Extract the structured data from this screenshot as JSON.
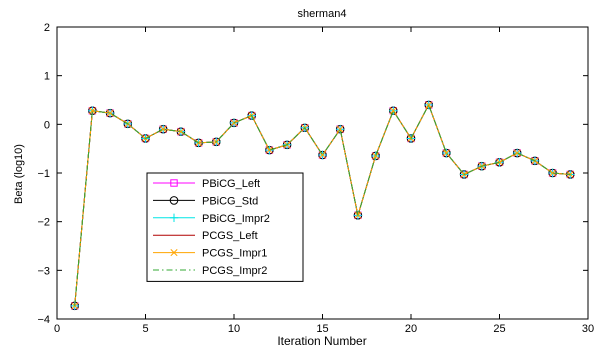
{
  "chart_data": {
    "type": "line",
    "title": "sherman4",
    "xlabel": "Iteration Number",
    "ylabel": "Beta (log10)",
    "xlim": [
      0,
      30
    ],
    "ylim": [
      -4,
      2
    ],
    "x_ticks": [
      0,
      5,
      10,
      15,
      20,
      25,
      30
    ],
    "y_ticks": [
      -4,
      -3,
      -2,
      -1,
      0,
      1,
      2
    ],
    "grid": false,
    "legend_position": "middle-left",
    "x": [
      1,
      2,
      3,
      4,
      5,
      6,
      7,
      8,
      9,
      10,
      11,
      12,
      13,
      14,
      15,
      16,
      17,
      18,
      19,
      20,
      21,
      22,
      23,
      24,
      25,
      26,
      27,
      28,
      29
    ],
    "series": [
      {
        "name": "PBiCG_Left",
        "color": "#ff00ff",
        "line": "solid",
        "marker": "square",
        "values": [
          -3.73,
          0.28,
          0.23,
          0.01,
          -0.29,
          -0.1,
          -0.15,
          -0.38,
          -0.36,
          0.03,
          0.18,
          -0.53,
          -0.42,
          -0.07,
          -0.63,
          -0.1,
          -1.87,
          -0.65,
          0.28,
          -0.29,
          0.4,
          -0.59,
          -1.03,
          -0.86,
          -0.78,
          -0.59,
          -0.75,
          -1.0,
          -1.03
        ]
      },
      {
        "name": "PBiCG_Std",
        "color": "#000000",
        "line": "solid",
        "marker": "circle",
        "values": [
          -3.73,
          0.28,
          0.23,
          0.01,
          -0.29,
          -0.1,
          -0.15,
          -0.38,
          -0.36,
          0.03,
          0.18,
          -0.53,
          -0.42,
          -0.07,
          -0.63,
          -0.1,
          -1.87,
          -0.65,
          0.28,
          -0.29,
          0.4,
          -0.59,
          -1.03,
          -0.86,
          -0.78,
          -0.59,
          -0.75,
          -1.0,
          -1.03
        ]
      },
      {
        "name": "PBiCG_Impr2",
        "color": "#00e5e5",
        "line": "solid",
        "marker": "plus",
        "values": [
          -3.73,
          0.28,
          0.23,
          0.01,
          -0.29,
          -0.1,
          -0.15,
          -0.38,
          -0.36,
          0.03,
          0.18,
          -0.53,
          -0.42,
          -0.07,
          -0.63,
          -0.1,
          -1.87,
          -0.65,
          0.28,
          -0.29,
          0.4,
          -0.59,
          -1.03,
          -0.86,
          -0.78,
          -0.59,
          -0.75,
          -1.0,
          -1.03
        ]
      },
      {
        "name": "PCGS_Left",
        "color": "#b00000",
        "line": "solid",
        "marker": "none",
        "values": [
          -3.73,
          0.28,
          0.23,
          0.01,
          -0.29,
          -0.1,
          -0.15,
          -0.38,
          -0.36,
          0.03,
          0.18,
          -0.53,
          -0.42,
          -0.07,
          -0.63,
          -0.1,
          -1.87,
          -0.65,
          0.28,
          -0.29,
          0.4,
          -0.59,
          -1.03,
          -0.86,
          -0.78,
          -0.59,
          -0.75,
          -1.0,
          -1.03
        ]
      },
      {
        "name": "PCGS_Impr1",
        "color": "#ffa500",
        "line": "solid",
        "marker": "x",
        "values": [
          -3.73,
          0.28,
          0.23,
          0.01,
          -0.29,
          -0.1,
          -0.15,
          -0.38,
          -0.36,
          0.03,
          0.18,
          -0.53,
          -0.42,
          -0.07,
          -0.63,
          -0.1,
          -1.87,
          -0.65,
          0.28,
          -0.29,
          0.4,
          -0.59,
          -1.03,
          -0.86,
          -0.78,
          -0.59,
          -0.75,
          -1.0,
          -1.03
        ]
      },
      {
        "name": "PCGS_Impr2",
        "color": "#33aa33",
        "line": "dashdot",
        "marker": "none",
        "values": [
          -3.73,
          0.28,
          0.23,
          0.01,
          -0.29,
          -0.1,
          -0.15,
          -0.38,
          -0.36,
          0.03,
          0.18,
          -0.53,
          -0.42,
          -0.07,
          -0.63,
          -0.1,
          -1.87,
          -0.65,
          0.28,
          -0.29,
          0.4,
          -0.59,
          -1.03,
          -0.86,
          -0.78,
          -0.59,
          -0.75,
          -1.0,
          -1.03
        ]
      }
    ]
  }
}
